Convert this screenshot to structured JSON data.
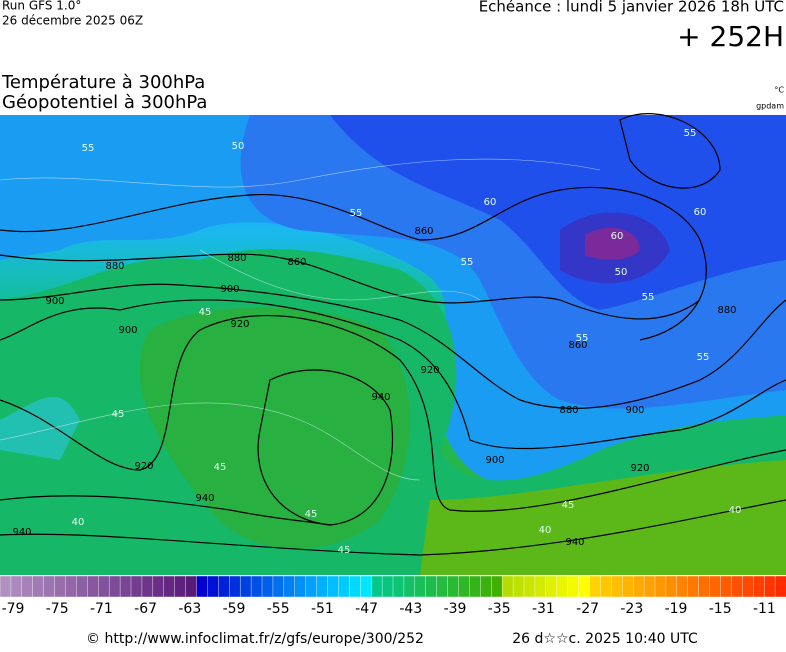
{
  "header": {
    "run": "Run GFS 1.0°",
    "run_date": "26 décembre 2025 06Z",
    "valid": "Echéance : lundi 5 janvier 2026 18h UTC",
    "lead": "+ 252H"
  },
  "titles": {
    "temperature": "Température à 300hPa",
    "geopotential": "Géopotentiel à 300hPa",
    "temperature_unit": "°C",
    "geopotential_unit": "gpdam"
  },
  "map": {
    "geopotential_labels": [
      "880",
      "880",
      "860",
      "900",
      "900",
      "920",
      "900",
      "920",
      "940",
      "940",
      "940",
      "920",
      "860",
      "860",
      "880",
      "900",
      "900",
      "920",
      "880",
      "940"
    ],
    "temperature_labels": [
      "55",
      "50",
      "55",
      "60",
      "55",
      "60",
      "50",
      "55",
      "55",
      "55",
      "45",
      "45",
      "45",
      "40",
      "45",
      "45",
      "40",
      "45",
      "40",
      "55",
      "60"
    ]
  },
  "colorbar": {
    "labels": [
      "-79",
      "-75",
      "-71",
      "-67",
      "-63",
      "-59",
      "-55",
      "-51",
      "-47",
      "-43",
      "-39",
      "-35",
      "-31",
      "-27",
      "-23",
      "-19",
      "-15",
      "-11"
    ]
  },
  "footer": {
    "source": "© http://www.infoclimat.fr/z/gfs/europe/300/252",
    "generated": "26 d☆☆c. 2025 10:40 UTC"
  }
}
